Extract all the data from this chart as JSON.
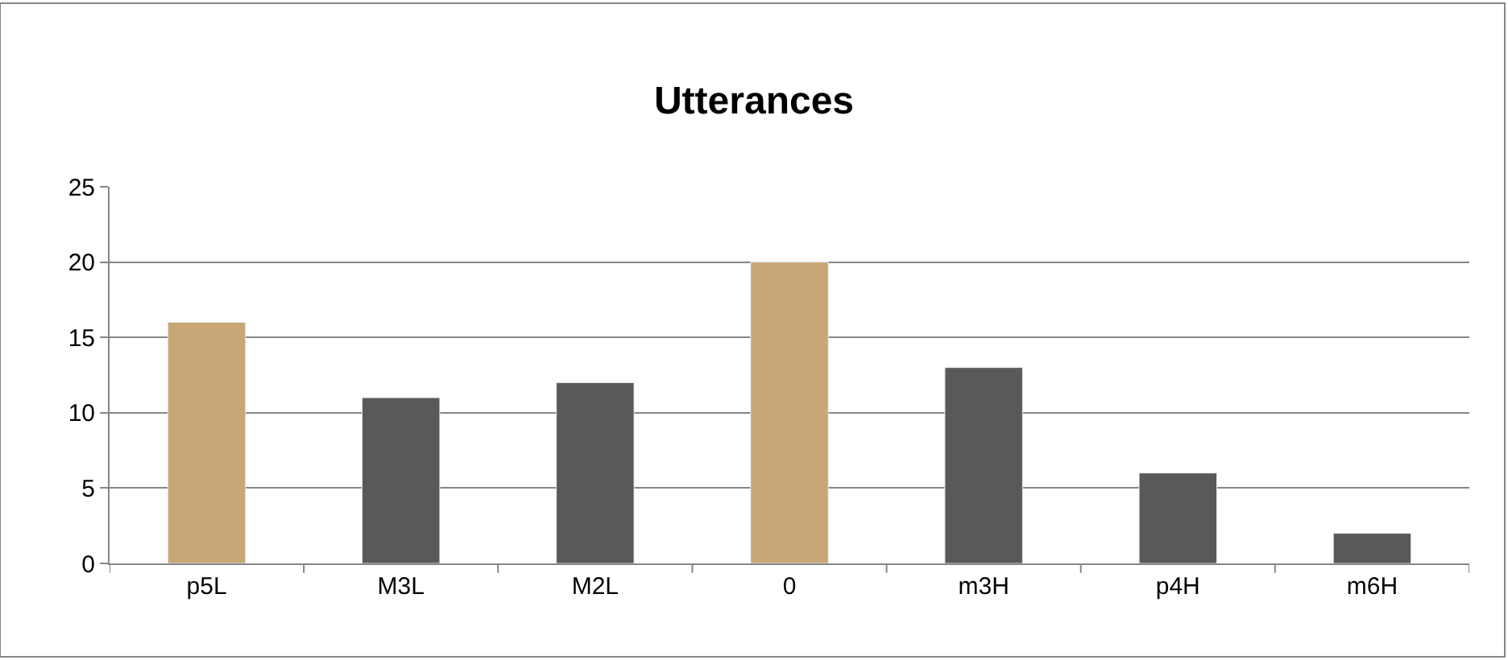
{
  "chart_data": {
    "type": "bar",
    "title": "Utterances",
    "categories": [
      "p5L",
      "M3L",
      "M2L",
      "0",
      "m3H",
      "p4H",
      "m6H"
    ],
    "values": [
      16,
      11,
      12,
      20,
      13,
      6,
      2
    ],
    "colors": [
      "#c8a676",
      "#595959",
      "#595959",
      "#c8a676",
      "#595959",
      "#595959",
      "#595959"
    ],
    "ylim": [
      0,
      25
    ],
    "yticks": [
      0,
      5,
      10,
      15,
      20,
      25
    ],
    "grid": "y",
    "legend": false
  }
}
